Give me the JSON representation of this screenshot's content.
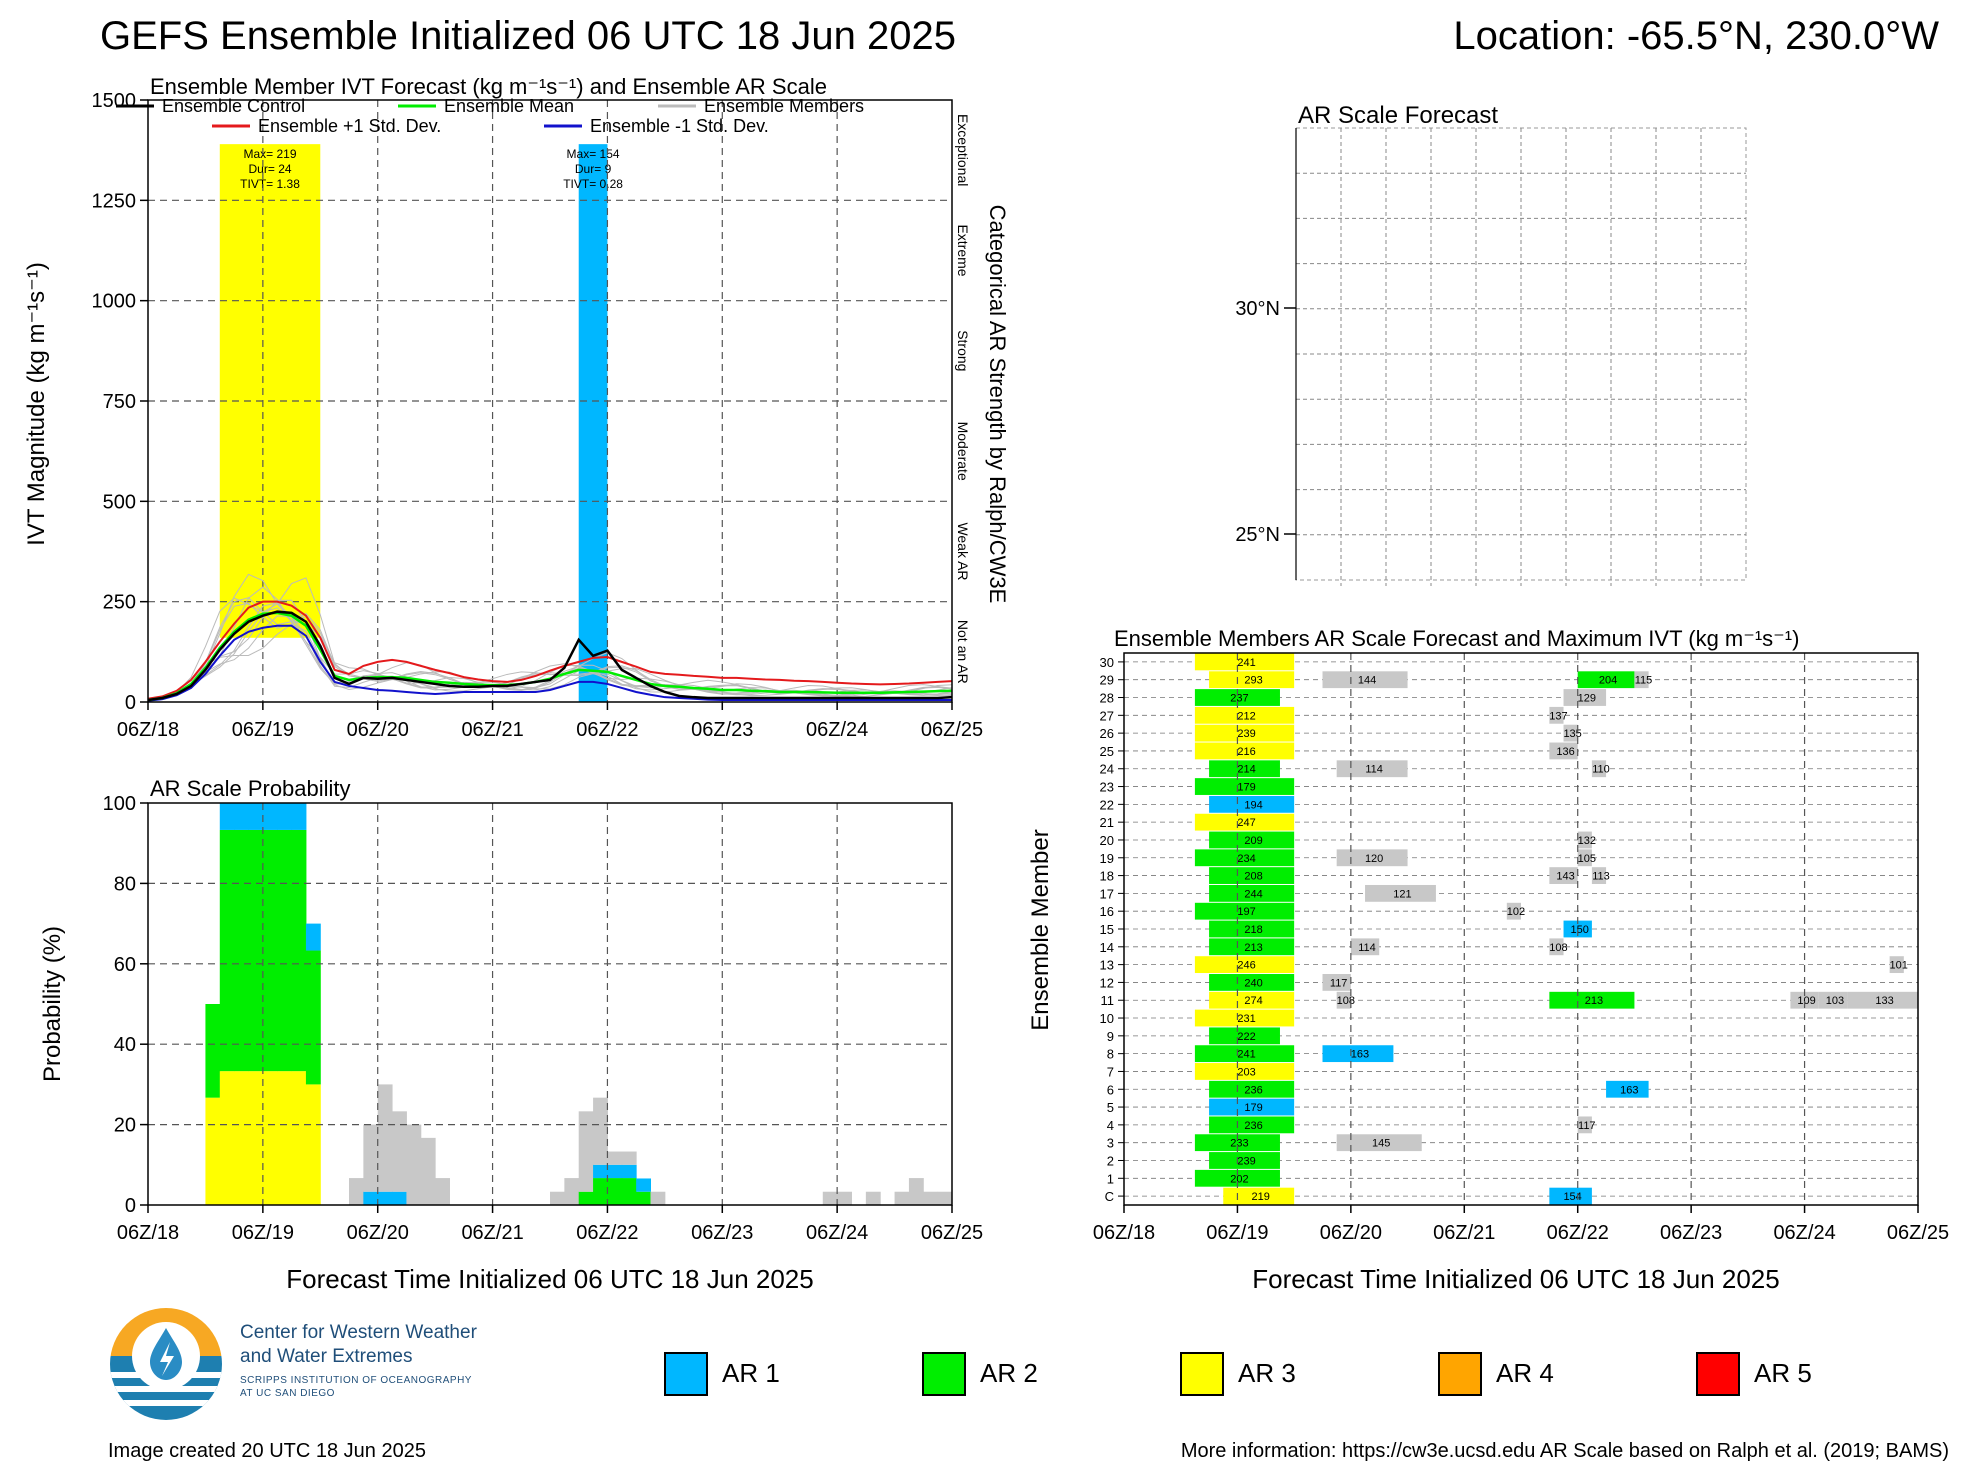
{
  "header": {
    "title": "GEFS Ensemble Initialized 06 UTC 18 Jun 2025",
    "location": "Location: -65.5°N, 230.0°W"
  },
  "footer": {
    "created": "Image created 20 UTC 18 Jun 2025",
    "more_info": "More information: https://cw3e.ucsd.edu AR Scale based on Ralph et al. (2019; BAMS)"
  },
  "logo": {
    "line1": "Center for Western Weather",
    "line2": "and Water Extremes",
    "line3": "SCRIPPS INSTITUTION OF OCEANOGRAPHY",
    "line4": "AT UC SAN DIEGO"
  },
  "ar_legend": [
    {
      "label": "AR 1",
      "color": "#00b7ff"
    },
    {
      "label": "AR 2",
      "color": "#00ee00"
    },
    {
      "label": "AR 3",
      "color": "#ffff00"
    },
    {
      "label": "AR 4",
      "color": "#ffa500"
    },
    {
      "label": "AR 5",
      "color": "#ff0000"
    }
  ],
  "colors": {
    "ar1": "#00b7ff",
    "ar2": "#00ee00",
    "ar3": "#ffff00",
    "member_line": "#bbbbbb",
    "non_ar_box": "#c8c8c8",
    "control": "#000000",
    "mean": "#00ee00",
    "plus_std": "#e41a1c",
    "minus_std": "#1111cc"
  },
  "chart_data": [
    {
      "id": "ivt",
      "type": "line",
      "title": "Ensemble Member IVT Forecast (kg m⁻¹s⁻¹) and Ensemble AR Scale",
      "ylabel": "IVT Magnitude (kg m⁻¹s⁻¹)",
      "right_label": "Categorical AR Strength by Ralph/CW3E",
      "categories": [
        "Not an AR",
        "Weak AR",
        "Moderate",
        "Strong",
        "Extreme",
        "Exceptional"
      ],
      "ylim": [
        0,
        1500
      ],
      "yticks": [
        0,
        250,
        500,
        750,
        1000,
        1250,
        1500
      ],
      "xlim": [
        0,
        168
      ],
      "xticks": [
        {
          "t": 0,
          "label": "06Z/18"
        },
        {
          "t": 24,
          "label": "06Z/19"
        },
        {
          "t": 48,
          "label": "06Z/20"
        },
        {
          "t": 72,
          "label": "06Z/21"
        },
        {
          "t": 96,
          "label": "06Z/22"
        },
        {
          "t": 120,
          "label": "06Z/23"
        },
        {
          "t": 144,
          "label": "06Z/24"
        },
        {
          "t": 168,
          "label": "06Z/25"
        }
      ],
      "legend": {
        "control": "Ensemble Control",
        "mean": "Ensemble Mean",
        "members": "Ensemble Members",
        "plus": "Ensemble +1 Std. Dev.",
        "minus": "Ensemble -1 Std. Dev."
      },
      "ar_events": [
        {
          "t0": 15,
          "t1": 36,
          "level": 3,
          "low": 160,
          "labels": [
            "Max= 219",
            "Dur= 24",
            "TIVT= 1.38"
          ]
        },
        {
          "t0": 90,
          "t1": 96,
          "level": 1,
          "low": 0,
          "labels": [
            "Max= 154",
            "Dur= 9",
            "TIVT= 0.28"
          ]
        }
      ],
      "t": [
        0,
        3,
        6,
        9,
        12,
        15,
        18,
        21,
        24,
        27,
        30,
        33,
        36,
        39,
        42,
        45,
        48,
        51,
        54,
        57,
        60,
        63,
        66,
        69,
        72,
        75,
        78,
        81,
        84,
        87,
        90,
        93,
        96,
        99,
        102,
        105,
        108,
        111,
        114,
        117,
        120,
        123,
        126,
        129,
        132,
        135,
        138,
        141,
        144,
        147,
        150,
        153,
        156,
        159,
        162,
        165,
        168
      ],
      "control": [
        5,
        10,
        20,
        40,
        80,
        130,
        170,
        200,
        215,
        225,
        222,
        200,
        140,
        60,
        45,
        60,
        58,
        60,
        55,
        50,
        45,
        40,
        38,
        38,
        40,
        40,
        45,
        50,
        55,
        85,
        155,
        115,
        128,
        80,
        60,
        40,
        25,
        15,
        12,
        10,
        10,
        10,
        10,
        10,
        10,
        10,
        10,
        10,
        10,
        10,
        10,
        10,
        10,
        10,
        10,
        10,
        12
      ],
      "mean": [
        5,
        10,
        22,
        45,
        85,
        135,
        175,
        205,
        220,
        222,
        215,
        190,
        130,
        65,
        55,
        60,
        62,
        62,
        60,
        55,
        50,
        48,
        45,
        43,
        42,
        42,
        45,
        50,
        58,
        70,
        80,
        78,
        75,
        65,
        55,
        45,
        40,
        38,
        35,
        33,
        30,
        30,
        28,
        27,
        25,
        25,
        25,
        24,
        23,
        23,
        23,
        23,
        24,
        25,
        26,
        27,
        28
      ],
      "plus_std": [
        8,
        14,
        28,
        55,
        100,
        150,
        195,
        235,
        250,
        250,
        240,
        215,
        160,
        80,
        70,
        90,
        100,
        105,
        100,
        90,
        80,
        72,
        62,
        56,
        52,
        50,
        55,
        65,
        78,
        90,
        100,
        110,
        112,
        100,
        88,
        75,
        70,
        68,
        65,
        63,
        60,
        60,
        58,
        56,
        55,
        53,
        52,
        50,
        48,
        46,
        45,
        44,
        45,
        46,
        48,
        50,
        52
      ],
      "minus_std": [
        3,
        7,
        17,
        35,
        70,
        115,
        155,
        175,
        185,
        190,
        190,
        165,
        100,
        50,
        40,
        35,
        30,
        28,
        25,
        22,
        20,
        22,
        25,
        25,
        25,
        25,
        25,
        25,
        30,
        40,
        50,
        50,
        45,
        35,
        25,
        18,
        12,
        10,
        8,
        6,
        5,
        5,
        5,
        5,
        5,
        5,
        5,
        5,
        5,
        5,
        5,
        5,
        5,
        5,
        5,
        5,
        5
      ]
    },
    {
      "id": "prob",
      "type": "bar",
      "title": "AR Scale Probability",
      "ylabel": "Probability (%)",
      "xlabel": "Forecast Time Initialized 06 UTC 18 Jun 2025",
      "ylim": [
        0,
        100
      ],
      "yticks": [
        0,
        20,
        40,
        60,
        80,
        100
      ],
      "bin_hours": 3,
      "bars": [
        {
          "t": 12,
          "ar3": 26.7,
          "ar2": 23.3,
          "ar1": 0,
          "none": 0
        },
        {
          "t": 15,
          "ar3": 33.3,
          "ar2": 60,
          "ar1": 6.7,
          "none": 0
        },
        {
          "t": 18,
          "ar3": 33.3,
          "ar2": 60,
          "ar1": 6.7,
          "none": 0
        },
        {
          "t": 21,
          "ar3": 33.3,
          "ar2": 60,
          "ar1": 6.7,
          "none": 0
        },
        {
          "t": 24,
          "ar3": 33.3,
          "ar2": 60,
          "ar1": 6.7,
          "none": 0
        },
        {
          "t": 27,
          "ar3": 33.3,
          "ar2": 60,
          "ar1": 6.7,
          "none": 0
        },
        {
          "t": 30,
          "ar3": 33.3,
          "ar2": 60,
          "ar1": 6.7,
          "none": 0
        },
        {
          "t": 33,
          "ar3": 30,
          "ar2": 33.3,
          "ar1": 6.7,
          "none": 0
        },
        {
          "t": 42,
          "ar3": 0,
          "ar2": 0,
          "ar1": 0,
          "none": 6.7
        },
        {
          "t": 45,
          "ar3": 0,
          "ar2": 0,
          "ar1": 3.3,
          "none": 16.7
        },
        {
          "t": 48,
          "ar3": 0,
          "ar2": 0,
          "ar1": 3.3,
          "none": 26.7
        },
        {
          "t": 51,
          "ar3": 0,
          "ar2": 0,
          "ar1": 3.3,
          "none": 20
        },
        {
          "t": 54,
          "ar3": 0,
          "ar2": 0,
          "ar1": 0,
          "none": 20
        },
        {
          "t": 57,
          "ar3": 0,
          "ar2": 0,
          "ar1": 0,
          "none": 16.7
        },
        {
          "t": 60,
          "ar3": 0,
          "ar2": 0,
          "ar1": 0,
          "none": 6.7
        },
        {
          "t": 84,
          "ar3": 0,
          "ar2": 0,
          "ar1": 0,
          "none": 3.3
        },
        {
          "t": 87,
          "ar3": 0,
          "ar2": 0,
          "ar1": 0,
          "none": 6.7
        },
        {
          "t": 90,
          "ar3": 0,
          "ar2": 3.3,
          "ar1": 0,
          "none": 20
        },
        {
          "t": 93,
          "ar3": 0,
          "ar2": 6.7,
          "ar1": 3.3,
          "none": 16.7
        },
        {
          "t": 96,
          "ar3": 0,
          "ar2": 6.7,
          "ar1": 3.3,
          "none": 3.3
        },
        {
          "t": 99,
          "ar3": 0,
          "ar2": 6.7,
          "ar1": 3.3,
          "none": 3.3
        },
        {
          "t": 102,
          "ar3": 0,
          "ar2": 3.3,
          "ar1": 3.3,
          "none": 0
        },
        {
          "t": 105,
          "ar3": 0,
          "ar2": 0,
          "ar1": 0,
          "none": 3.3
        },
        {
          "t": 141,
          "ar3": 0,
          "ar2": 0,
          "ar1": 0,
          "none": 3.3
        },
        {
          "t": 144,
          "ar3": 0,
          "ar2": 0,
          "ar1": 0,
          "none": 3.3
        },
        {
          "t": 150,
          "ar3": 0,
          "ar2": 0,
          "ar1": 0,
          "none": 3.3
        },
        {
          "t": 156,
          "ar3": 0,
          "ar2": 0,
          "ar1": 0,
          "none": 3.3
        },
        {
          "t": 159,
          "ar3": 0,
          "ar2": 0,
          "ar1": 0,
          "none": 6.7
        },
        {
          "t": 162,
          "ar3": 0,
          "ar2": 0,
          "ar1": 0,
          "none": 3.3
        },
        {
          "t": 165,
          "ar3": 0,
          "ar2": 0,
          "ar1": 0,
          "none": 3.3
        }
      ]
    },
    {
      "id": "map",
      "type": "map",
      "title": "AR Scale Forecast",
      "lat_labels": [
        "30°N",
        "25°N"
      ]
    },
    {
      "id": "members",
      "type": "heatmap",
      "title": "Ensemble Members AR Scale Forecast and Maximum IVT (kg m⁻¹s⁻¹)",
      "ylabel": "Ensemble Member",
      "xlabel": "Forecast Time Initialized 06 UTC 18 Jun 2025",
      "rows": [
        {
          "label": "C",
          "ev": [
            [
              21,
              36,
              3,
              219
            ],
            [
              90,
              99,
              1,
              154
            ]
          ]
        },
        {
          "label": "1",
          "ev": [
            [
              15,
              33,
              2,
              202
            ]
          ]
        },
        {
          "label": "2",
          "ev": [
            [
              18,
              33,
              2,
              239
            ]
          ]
        },
        {
          "label": "3",
          "ev": [
            [
              15,
              33,
              2,
              233
            ],
            [
              45,
              63,
              0,
              145
            ]
          ]
        },
        {
          "label": "4",
          "ev": [
            [
              18,
              36,
              2,
              236
            ],
            [
              96,
              99,
              0,
              117
            ]
          ]
        },
        {
          "label": "5",
          "ev": [
            [
              18,
              36,
              1,
              179
            ]
          ]
        },
        {
          "label": "6",
          "ev": [
            [
              18,
              36,
              2,
              236
            ],
            [
              102,
              111,
              1,
              163
            ]
          ]
        },
        {
          "label": "7",
          "ev": [
            [
              15,
              36,
              3,
              203
            ]
          ]
        },
        {
          "label": "8",
          "ev": [
            [
              15,
              36,
              2,
              241
            ],
            [
              42,
              57,
              1,
              163
            ]
          ]
        },
        {
          "label": "9",
          "ev": [
            [
              18,
              33,
              2,
              222
            ]
          ]
        },
        {
          "label": "10",
          "ev": [
            [
              15,
              36,
              3,
              231
            ]
          ]
        },
        {
          "label": "11",
          "ev": [
            [
              18,
              36,
              3,
              274
            ],
            [
              45,
              48,
              0,
              108
            ],
            [
              90,
              108,
              2,
              213
            ],
            [
              141,
              147,
              0,
              109
            ],
            [
              147,
              153,
              0,
              103
            ],
            [
              153,
              168,
              0,
              133
            ]
          ]
        },
        {
          "label": "12",
          "ev": [
            [
              18,
              36,
              2,
              240
            ],
            [
              42,
              48,
              0,
              117
            ]
          ]
        },
        {
          "label": "13",
          "ev": [
            [
              15,
              36,
              3,
              246
            ],
            [
              162,
              165,
              0,
              101
            ]
          ]
        },
        {
          "label": "14",
          "ev": [
            [
              18,
              36,
              2,
              213
            ],
            [
              48,
              54,
              0,
              114
            ],
            [
              90,
              93,
              0,
              108
            ]
          ]
        },
        {
          "label": "15",
          "ev": [
            [
              18,
              36,
              2,
              218
            ],
            [
              93,
              99,
              1,
              150
            ]
          ]
        },
        {
          "label": "16",
          "ev": [
            [
              15,
              36,
              2,
              197
            ],
            [
              81,
              84,
              0,
              102
            ]
          ]
        },
        {
          "label": "17",
          "ev": [
            [
              18,
              36,
              2,
              244
            ],
            [
              51,
              66,
              0,
              121
            ]
          ]
        },
        {
          "label": "18",
          "ev": [
            [
              18,
              36,
              2,
              208
            ],
            [
              90,
              96,
              0,
              143
            ],
            [
              99,
              102,
              0,
              113
            ]
          ]
        },
        {
          "label": "19",
          "ev": [
            [
              15,
              36,
              2,
              234
            ],
            [
              45,
              60,
              0,
              120
            ],
            [
              96,
              99,
              0,
              105
            ]
          ]
        },
        {
          "label": "20",
          "ev": [
            [
              18,
              36,
              2,
              209
            ],
            [
              96,
              99,
              0,
              132
            ]
          ]
        },
        {
          "label": "21",
          "ev": [
            [
              15,
              36,
              3,
              247
            ]
          ]
        },
        {
          "label": "22",
          "ev": [
            [
              18,
              36,
              1,
              194
            ]
          ]
        },
        {
          "label": "23",
          "ev": [
            [
              15,
              36,
              2,
              179
            ]
          ]
        },
        {
          "label": "24",
          "ev": [
            [
              18,
              33,
              2,
              214
            ],
            [
              45,
              60,
              0,
              114
            ],
            [
              99,
              102,
              0,
              110
            ]
          ]
        },
        {
          "label": "25",
          "ev": [
            [
              15,
              36,
              3,
              216
            ],
            [
              90,
              96,
              0,
              136
            ]
          ]
        },
        {
          "label": "26",
          "ev": [
            [
              15,
              36,
              3,
              239
            ],
            [
              93,
              96,
              0,
              135
            ]
          ]
        },
        {
          "label": "27",
          "ev": [
            [
              15,
              36,
              3,
              212
            ],
            [
              90,
              93,
              0,
              137
            ]
          ]
        },
        {
          "label": "28",
          "ev": [
            [
              15,
              33,
              2,
              237
            ],
            [
              93,
              102,
              0,
              129
            ]
          ]
        },
        {
          "label": "29",
          "ev": [
            [
              18,
              36,
              3,
              293
            ],
            [
              42,
              60,
              0,
              144
            ],
            [
              96,
              108,
              2,
              204
            ],
            [
              108,
              111,
              0,
              115
            ]
          ]
        },
        {
          "label": "30",
          "ev": [
            [
              15,
              36,
              3,
              241
            ]
          ]
        }
      ]
    }
  ]
}
